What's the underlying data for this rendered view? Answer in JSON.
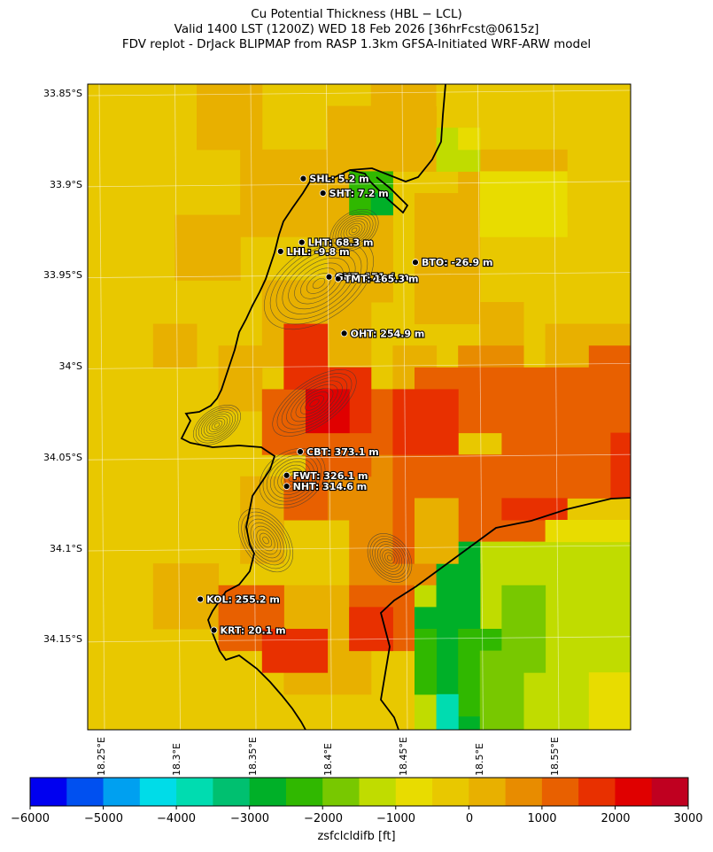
{
  "titles": {
    "line1": "Cu Potential Thickness (HBL − LCL)",
    "line2": "Valid 1400 LST (1200Z) WED 18 Feb 2026 [36hrFcst@0615z]",
    "line3": "FDV replot - DrJack BLIPMAP from RASP 1.3km GFSA-Initiated WRF-ARW model"
  },
  "lat_labels": [
    "33.85°S",
    "33.9°S",
    "33.95°S",
    "34°S",
    "34.05°S",
    "34.1°S",
    "34.15°S"
  ],
  "lon_labels": [
    "18.25°E",
    "18.3°E",
    "18.35°E",
    "18.4°E",
    "18.45°E",
    "18.5°E",
    "18.55°E"
  ],
  "stations": [
    {
      "id": "SHL",
      "label": "SHL: 5.2 m",
      "lon": 18.383,
      "lat": -33.897
    },
    {
      "id": "SHT",
      "label": "SHT: 7.2 m",
      "lon": 18.396,
      "lat": -33.905
    },
    {
      "id": "LHT",
      "label": "LHT: 68.3 m",
      "lon": 18.382,
      "lat": -33.932
    },
    {
      "id": "LHL",
      "label": "LHL: -9.8 m",
      "lon": 18.368,
      "lat": -33.937
    },
    {
      "id": "BTO",
      "label": "BTO: -26.9 m",
      "lon": 18.457,
      "lat": -33.943
    },
    {
      "id": "GUT",
      "label": "GUT: 171.4 m",
      "lon": 18.4,
      "lat": -33.951
    },
    {
      "id": "TMT",
      "label": "TMT: 165.3 m",
      "lon": 18.406,
      "lat": -33.952
    },
    {
      "id": "OHT",
      "label": "OHT: 254.9 m",
      "lon": 18.41,
      "lat": -33.982
    },
    {
      "id": "CBT",
      "label": "CBT: 373.1 m",
      "lon": 18.381,
      "lat": -34.047
    },
    {
      "id": "FWT",
      "label": "FWT: 326.1 m",
      "lon": 18.372,
      "lat": -34.06
    },
    {
      "id": "NHT",
      "label": "NHT: 314.6 m",
      "lon": 18.372,
      "lat": -34.066
    },
    {
      "id": "KOL",
      "label": "KOL: 255.2 m",
      "lon": 18.315,
      "lat": -34.128
    },
    {
      "id": "KRT",
      "label": "KRT: 20.1 m",
      "lon": 18.324,
      "lat": -34.145
    }
  ],
  "colorbar": {
    "ticks": [
      "−6000",
      "−5000",
      "−4000",
      "−3000",
      "−2000",
      "−1000",
      "0",
      "1000",
      "2000",
      "3000"
    ],
    "label": "zsfclcldifb [ft]",
    "colors": [
      "#0000f0",
      "#0050f0",
      "#00a0f0",
      "#00dce8",
      "#00dcb0",
      "#00c070",
      "#00b028",
      "#30b800",
      "#78c800",
      "#c0dc00",
      "#e8dc00",
      "#e8c800",
      "#e8b000",
      "#e88c00",
      "#e86000",
      "#e83000",
      "#e00000",
      "#c00020"
    ]
  }
}
